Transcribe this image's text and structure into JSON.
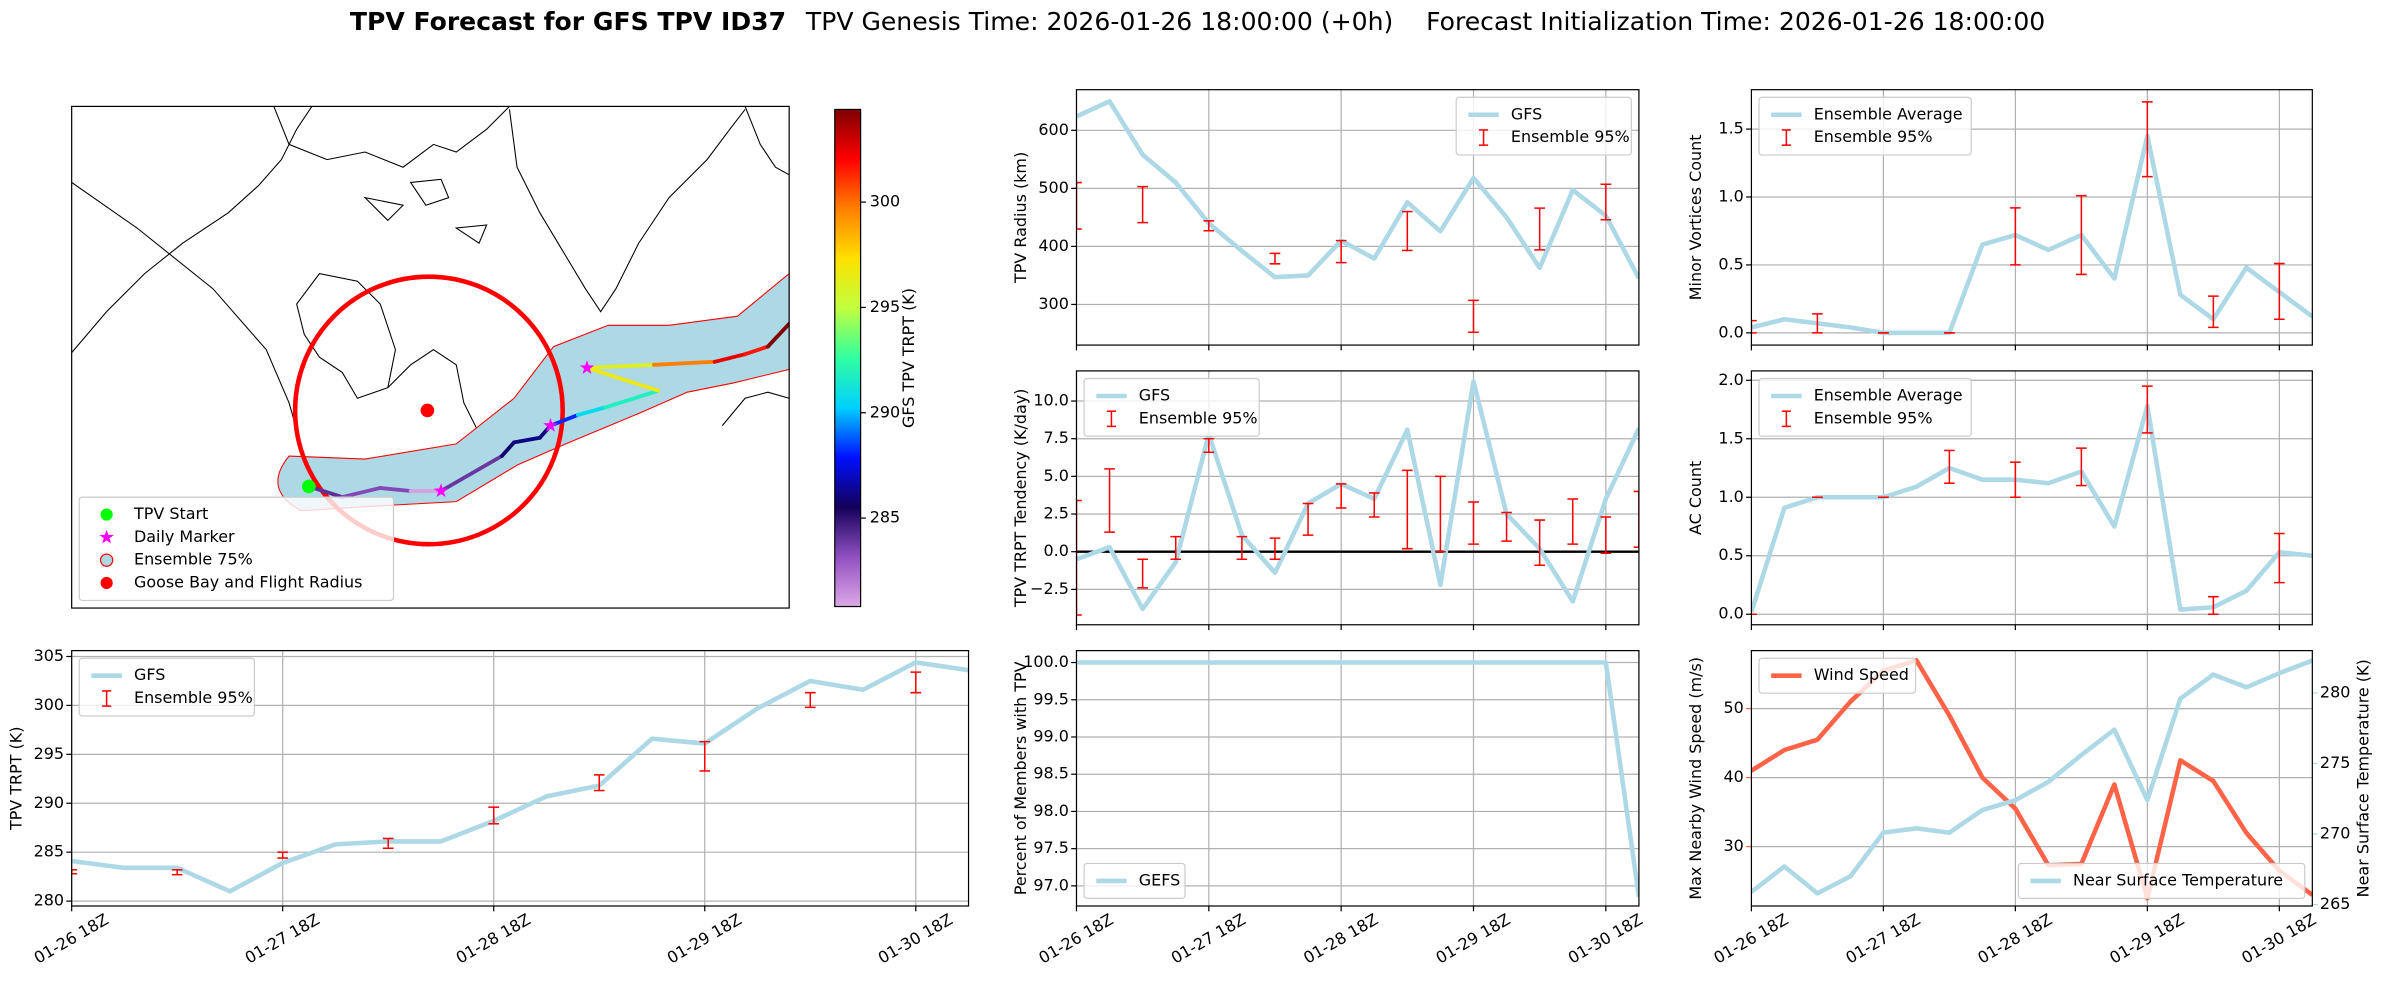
{
  "figure_title": [
    "TPV Forecast for GFS TPV ID37",
    "TPV Genesis Time: 2026-01-26 18:00:00 (+0h)",
    "Forecast Initialization Time: 2026-01-26 18:00:00"
  ],
  "chart_data": [
    {
      "type": "map",
      "colorbar_label": "GFS TPV TRPT (K)",
      "clim": [
        280.8,
        304.4
      ],
      "cticks": [
        285,
        290,
        295,
        300
      ],
      "cmap": [
        "#dca8e6",
        "#9050c0",
        "#14005a",
        "#0010ff",
        "#00d0ff",
        "#30ffa0",
        "#c0ff40",
        "#ffe000",
        "#ff8000",
        "#ff0000",
        "#800000"
      ],
      "legend": [
        {
          "label": "TPV Start",
          "color": "#00ff00"
        },
        {
          "label": "Daily Marker",
          "color": "#ff00ff"
        },
        {
          "label": "Ensemble 75%",
          "color": "#add8e6",
          "edge": "#ff0000"
        },
        {
          "label": "Goose Bay and Flight Radius",
          "color": "#ff0000"
        }
      ]
    },
    {
      "type": "line",
      "ylabel": "TPV Radius (km)",
      "xlim": [
        0,
        17
      ],
      "xticks": [
        0,
        4,
        8,
        12,
        16
      ],
      "ylim": [
        230,
        670
      ],
      "yticks": [
        300,
        400,
        500,
        600
      ],
      "grid": true,
      "legend": "upper right",
      "series": [
        {
          "name": "GFS",
          "color": "#add8e6",
          "values": [
            624,
            650,
            558,
            510,
            440,
            392,
            347,
            350,
            410,
            379,
            476,
            426,
            518,
            450,
            363,
            497,
            453,
            345
          ]
        },
        {
          "name": "Ensemble 95%",
          "color": "#ff0000",
          "kind": "errorbar",
          "x": [
            0,
            2,
            4,
            6,
            8,
            10,
            12,
            14,
            16
          ],
          "low": [
            430,
            441,
            427,
            370,
            372,
            393,
            252,
            394,
            446
          ],
          "high": [
            510,
            503,
            444,
            388,
            410,
            460,
            307,
            466,
            507
          ]
        }
      ]
    },
    {
      "type": "line",
      "ylabel": "Minor Vortices Count",
      "xlim": [
        0,
        17
      ],
      "xticks": [
        0,
        4,
        8,
        12,
        16
      ],
      "ylim": [
        -0.09,
        1.79
      ],
      "yticks": [
        {
          "value": 0,
          "label": "0.0"
        },
        0.5,
        {
          "value": 1,
          "label": "1.0"
        },
        1.5
      ],
      "grid": true,
      "legend": "upper left",
      "series": [
        {
          "name": "Ensemble Average",
          "color": "#add8e6",
          "values": [
            0.04,
            0.1,
            0.07,
            0.04,
            0,
            0,
            0,
            0.65,
            0.72,
            0.61,
            0.72,
            0.4,
            1.45,
            0.28,
            0.1,
            0.48,
            0.3,
            0.12
          ]
        },
        {
          "name": "Ensemble 95%",
          "color": "#ff0000",
          "kind": "errorbar",
          "x": [
            0,
            2,
            4,
            6,
            8,
            10,
            12,
            14,
            16
          ],
          "low": [
            0,
            0,
            0,
            0,
            0.5,
            0.43,
            1.15,
            0.04,
            0.1
          ],
          "high": [
            0.09,
            0.14,
            0,
            0,
            0.92,
            1.01,
            1.7,
            0.27,
            0.51
          ]
        }
      ]
    },
    {
      "type": "line",
      "ylabel": "TPV TRPT Tendency (K/day)",
      "xlim": [
        0,
        17
      ],
      "xticks": [
        0,
        4,
        8,
        12,
        16
      ],
      "ylim": [
        -4.85,
        12
      ],
      "yticks": [
        {
          "value": -2.5,
          "label": "−2.5"
        },
        {
          "value": 0,
          "label": "0.0"
        },
        2.5,
        {
          "value": 5,
          "label": "5.0"
        },
        7.5,
        {
          "value": 10,
          "label": "10.0"
        }
      ],
      "grid": true,
      "legend": "upper left",
      "hline": 0,
      "series": [
        {
          "name": "GFS",
          "color": "#add8e6",
          "values": [
            -0.5,
            0.3,
            -3.8,
            -0.7,
            7.8,
            1.1,
            -1.4,
            3.2,
            4.5,
            3.5,
            8.1,
            -2.2,
            11.3,
            2.5,
            0.2,
            -3.3,
            3.5,
            8.2
          ]
        },
        {
          "name": "Ensemble 95%",
          "color": "#ff0000",
          "kind": "errorbar",
          "x": [
            0,
            1,
            2,
            3,
            4,
            5,
            6,
            7,
            8,
            9,
            10,
            11,
            12,
            13,
            14,
            15,
            16,
            17
          ],
          "low": [
            -4.2,
            1.3,
            -2.4,
            -0.5,
            6.6,
            -0.5,
            -0.5,
            1.1,
            2.9,
            2.3,
            0.2,
            0,
            0.5,
            0.7,
            -0.9,
            0.5,
            -0.1,
            0.3
          ],
          "high": [
            3.4,
            5.5,
            -0.5,
            1,
            7.5,
            1,
            0.9,
            3.2,
            4.5,
            3.9,
            5.4,
            5,
            3.3,
            2.6,
            2.1,
            3.5,
            2.3,
            4
          ]
        }
      ]
    },
    {
      "type": "line",
      "ylabel": "AC Count",
      "xlim": [
        0,
        17
      ],
      "xticks": [
        0,
        4,
        8,
        12,
        16
      ],
      "ylim": [
        -0.09,
        2.08
      ],
      "yticks": [
        {
          "value": 0,
          "label": "0.0"
        },
        0.5,
        {
          "value": 1,
          "label": "1.0"
        },
        1.5,
        {
          "value": 2,
          "label": "2.0"
        }
      ],
      "grid": true,
      "legend": "upper left",
      "series": [
        {
          "name": "Ensemble Average",
          "color": "#add8e6",
          "values": [
            0.02,
            0.91,
            1,
            1,
            1,
            1.09,
            1.25,
            1.15,
            1.15,
            1.12,
            1.22,
            0.75,
            1.78,
            0.04,
            0.06,
            0.2,
            0.53,
            0.5
          ]
        },
        {
          "name": "Ensemble 95%",
          "color": "#ff0000",
          "kind": "errorbar",
          "x": [
            0,
            2,
            4,
            6,
            8,
            10,
            12,
            14,
            16
          ],
          "low": [
            0,
            1,
            1,
            1.12,
            1,
            1.1,
            1.55,
            0,
            0.27
          ],
          "high": [
            0,
            1,
            1,
            1.4,
            1.3,
            1.42,
            1.95,
            0.15,
            0.69
          ]
        }
      ]
    },
    {
      "type": "line",
      "ylabel": "TPV TRPT (K)",
      "xlim": [
        0,
        17
      ],
      "xticks": [
        {
          "value": 0,
          "label": "01-26 18Z"
        },
        {
          "value": 4,
          "label": "01-27 18Z"
        },
        {
          "value": 8,
          "label": "01-28 18Z"
        },
        {
          "value": 12,
          "label": "01-29 18Z"
        },
        {
          "value": 16,
          "label": "01-30 18Z"
        }
      ],
      "ylim": [
        279.5,
        305.6
      ],
      "yticks": [
        280,
        285,
        290,
        295,
        300,
        305
      ],
      "grid": true,
      "legend": "upper left",
      "series": [
        {
          "name": "GFS",
          "color": "#add8e6",
          "values": [
            284.1,
            283.4,
            283.4,
            281,
            283.9,
            285.8,
            286.1,
            286.1,
            288.2,
            290.7,
            291.8,
            296.6,
            296.1,
            299.7,
            302.5,
            301.6,
            304.4,
            303.6
          ]
        },
        {
          "name": "Ensemble 95%",
          "color": "#ff0000",
          "kind": "errorbar",
          "x": [
            0,
            2,
            4,
            6,
            8,
            10,
            12,
            14,
            16
          ],
          "low": [
            282.8,
            282.7,
            284.4,
            285.4,
            287.9,
            291.3,
            293.3,
            299.8,
            301.3
          ],
          "high": [
            283.2,
            283.2,
            285,
            286.4,
            289.6,
            292.9,
            296.3,
            301.3,
            303.4
          ]
        }
      ]
    },
    {
      "type": "line",
      "ylabel": "Percent of Members with TPV",
      "xlim": [
        0,
        17
      ],
      "xticks": [
        {
          "value": 0,
          "label": "01-26 18Z"
        },
        {
          "value": 4,
          "label": "01-27 18Z"
        },
        {
          "value": 8,
          "label": "01-28 18Z"
        },
        {
          "value": 12,
          "label": "01-29 18Z"
        },
        {
          "value": 16,
          "label": "01-30 18Z"
        }
      ],
      "ylim": [
        96.73,
        100.16
      ],
      "yticks": [
        {
          "value": 97,
          "label": "97.0"
        },
        97.5,
        {
          "value": 98,
          "label": "98.0"
        },
        98.5,
        {
          "value": 99,
          "label": "99.0"
        },
        99.5,
        {
          "value": 100,
          "label": "100.0"
        }
      ],
      "grid": true,
      "legend": "lower left",
      "series": [
        {
          "name": "GEFS",
          "color": "#add8e6",
          "values": [
            100,
            100,
            100,
            100,
            100,
            100,
            100,
            100,
            100,
            100,
            100,
            100,
            100,
            100,
            100,
            100,
            100,
            96.85
          ]
        }
      ]
    },
    {
      "type": "line",
      "ylabel": "Max Nearby Wind Speed (m/s)",
      "y2label": "Near Surface Temperature (K)",
      "xlim": [
        0,
        17
      ],
      "xticks": [
        {
          "value": 0,
          "label": "01-26 18Z"
        },
        {
          "value": 4,
          "label": "01-27 18Z"
        },
        {
          "value": 8,
          "label": "01-28 18Z"
        },
        {
          "value": 12,
          "label": "01-29 18Z"
        },
        {
          "value": 16,
          "label": "01-30 18Z"
        }
      ],
      "ylim": [
        21.4,
        58.4
      ],
      "yticks": [
        30,
        40,
        50
      ],
      "y2lim": [
        264.9,
        283
      ],
      "y2ticks": [
        265,
        270,
        275,
        280
      ],
      "grid": true,
      "legend": "upper left",
      "legend2": "lower right",
      "series": [
        {
          "name": "Wind Speed",
          "color": "#ff6347",
          "values": [
            41,
            44,
            45.5,
            51,
            55.5,
            57,
            49,
            40,
            35.5,
            27.3,
            27.5,
            39,
            22.5,
            42.5,
            39.5,
            32,
            26.5,
            23
          ]
        },
        {
          "name": "Near Surface Temperature",
          "color": "#add8e6",
          "axis": "y2",
          "values": [
            265.9,
            267.7,
            265.8,
            267,
            270.1,
            270.4,
            270.1,
            271.7,
            272.4,
            273.7,
            275.6,
            277.4,
            272.4,
            279.6,
            281.3,
            280.4,
            281.4,
            282.3
          ]
        }
      ]
    }
  ]
}
